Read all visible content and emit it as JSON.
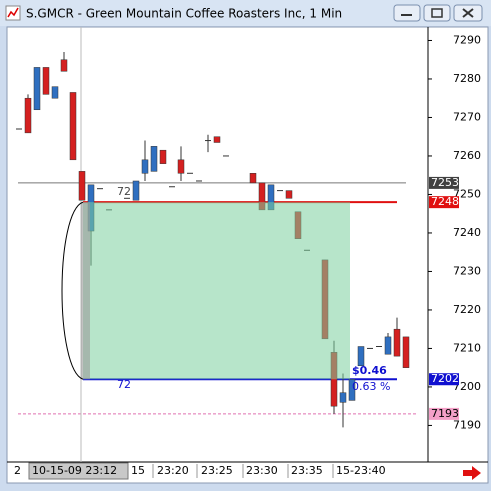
{
  "window": {
    "title": "S.GMCR - Green Mountain Coffee Roasters Inc, 1 Min"
  },
  "chart_data": {
    "type": "candlestick",
    "series": [
      {
        "up_color": "#2f6fc0",
        "down_color": "#d42020",
        "open": [
          7267,
          7275,
          7272,
          7283,
          7275,
          7285,
          7276.5,
          7256,
          7240.5,
          7251.5,
          7246,
          null,
          7249,
          7248.5,
          7255.5,
          7256,
          7261.5,
          7252,
          7259,
          7255.5,
          7253.5,
          7264,
          7265,
          7260,
          null,
          null,
          7255.5,
          7253,
          7246,
          7251,
          7251,
          7245.5,
          7235.5,
          null,
          7233,
          7209,
          7196,
          7196.5,
          7205.5,
          7210,
          7210.5,
          7208.5,
          7215,
          7213
        ],
        "high": [
          7267,
          7276,
          7283,
          7283,
          7278,
          7287,
          7276.5,
          7256,
          7252.5,
          7251.5,
          7246,
          null,
          7249,
          7253.5,
          7264,
          7262.5,
          7261.5,
          7252,
          7262.5,
          7255.5,
          7253.5,
          7265.5,
          7265,
          7260,
          null,
          null,
          7255.5,
          7253,
          7252.5,
          7251,
          7251,
          7245.5,
          7235.5,
          null,
          7233,
          7212,
          7203.5,
          7202,
          7210.5,
          7210,
          7210.5,
          7214,
          7218,
          7213
        ],
        "low": [
          7267,
          7266,
          7272,
          7276,
          7275,
          7282,
          7259,
          7248.5,
          7231.5,
          7251.5,
          7246,
          null,
          7249,
          7248.5,
          7253.5,
          7256,
          7258,
          7252,
          7253.5,
          7255.5,
          7253.5,
          7261,
          7263.5,
          7260,
          null,
          null,
          7253,
          7246,
          7246,
          7251,
          7249,
          7238.5,
          7235.5,
          null,
          7212.5,
          7193,
          7189.5,
          7196.5,
          7205.5,
          7210,
          7210.5,
          7208.5,
          7208,
          7205
        ],
        "close": [
          7267,
          7266,
          7283,
          7276,
          7278,
          7282,
          7259,
          7248.5,
          7252.5,
          7251.5,
          7246,
          null,
          7249,
          7253.5,
          7259,
          7262.5,
          7258,
          7252,
          7255.5,
          7255.5,
          7253.5,
          7264,
          7263.5,
          7260,
          null,
          null,
          7253,
          7246,
          7252.5,
          7251,
          7249,
          7238.5,
          7235.5,
          null,
          7212.5,
          7195,
          7198.5,
          7202,
          7210.5,
          7210,
          7210.5,
          7213,
          7208,
          7205
        ]
      }
    ],
    "ylim": [
      7180.5,
      7293.5
    ],
    "yticks": [
      7190,
      7200,
      7210,
      7220,
      7230,
      7240,
      7250,
      7260,
      7270,
      7280,
      7290
    ],
    "x_labels": [
      "2",
      "15",
      "23:20",
      "23:25",
      "23:30",
      "23:35",
      "15-23:40"
    ],
    "cursor_label": "10-15-09 23:12",
    "price_lines": [
      {
        "value": 7253,
        "color": "#404040",
        "text_color": "#ffffff"
      },
      {
        "value": 7248,
        "color": "#e01010",
        "text_color": "#ffffff"
      },
      {
        "value": 7202,
        "color": "#1010d0",
        "text_color": "#ffffff"
      },
      {
        "value": 7193,
        "color": "#f4a0c8",
        "text_color": "#000000"
      }
    ],
    "annotations": {
      "change": "$0.46",
      "percent": "0.63 %",
      "label_top": "72",
      "label_bottom": "72"
    }
  }
}
